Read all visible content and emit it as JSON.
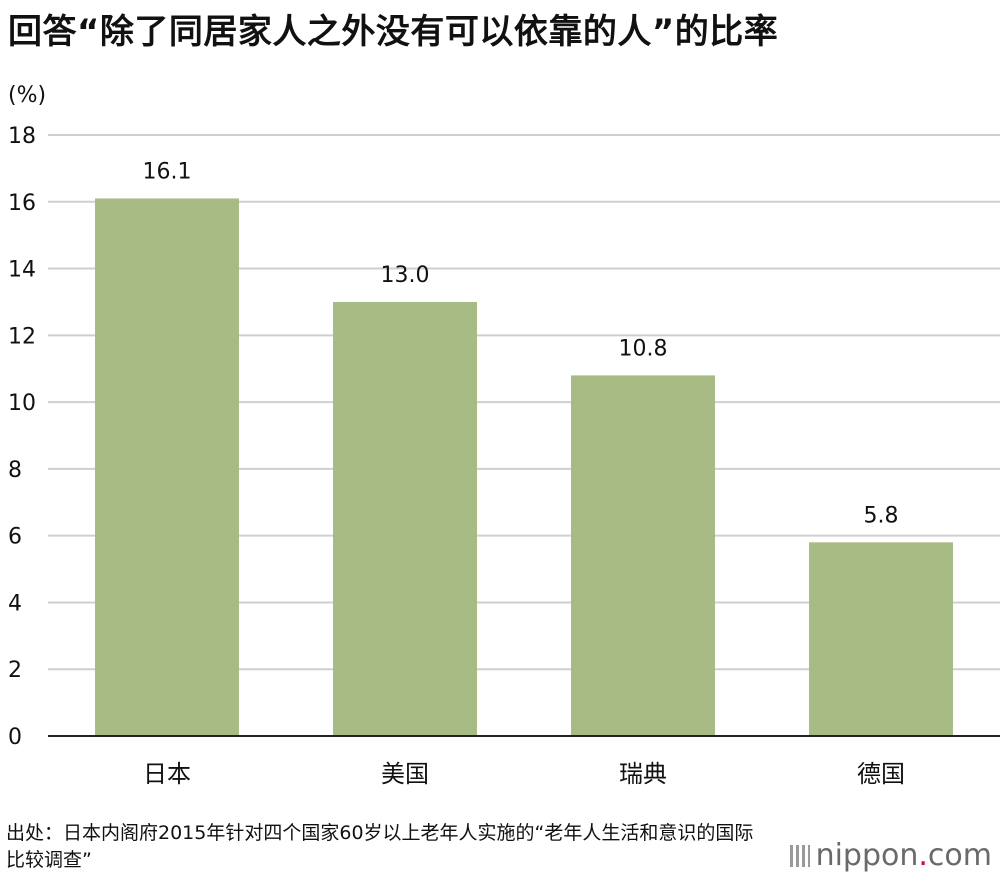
{
  "title": "回答“除了同居家人之外没有可以依靠的人”的比率",
  "chart_data": {
    "type": "bar",
    "title": "回答“除了同居家人之外没有可以依靠的人”的比率",
    "unit_label": "(%)",
    "categories": [
      "日本",
      "美国",
      "瑞典",
      "德国"
    ],
    "values": [
      16.1,
      13.0,
      10.8,
      5.8
    ],
    "value_labels": [
      "16.1",
      "13.0",
      "10.8",
      "5.8"
    ],
    "ylim": [
      0,
      18
    ],
    "yticks": [
      0,
      2,
      4,
      6,
      8,
      10,
      12,
      14,
      16,
      18
    ],
    "grid": true,
    "bar_color": "#a9bb85"
  },
  "source": "出处：日本内阁府2015年针对四个国家60岁以上老年人实施的“老年人生活和意识的国际比较调查”",
  "logo": {
    "name": "nippon",
    "suffix": ".com"
  }
}
